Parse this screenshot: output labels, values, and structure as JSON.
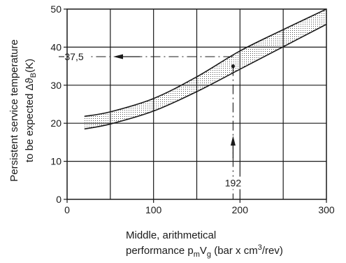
{
  "chart_data": {
    "type": "area",
    "xlabel_line1": "Middle, arithmetical",
    "xlabel_line2": {
      "text1": "performance p",
      "sub1": "m",
      "text2": "V",
      "sub2": "g",
      "text3": " (bar x cm",
      "sup": "3",
      "text4": "/rev)"
    },
    "ylabel_line1": "Persistent service temperature",
    "ylabel_line2": {
      "text1": "to be expected Δϑ",
      "sub": "B",
      "text2": "(K)"
    },
    "xlim": [
      0,
      300
    ],
    "ylim": [
      0,
      50
    ],
    "x_ticks": [
      0,
      100,
      200,
      300
    ],
    "y_ticks": [
      0,
      10,
      20,
      30,
      40,
      50
    ],
    "grid": true,
    "band": {
      "x": [
        20,
        50,
        100,
        150,
        200,
        250,
        300
      ],
      "upper": [
        21.8,
        23.0,
        26.5,
        32.2,
        39.0,
        44.6,
        50.0
      ],
      "lower": [
        18.5,
        19.8,
        23.2,
        28.3,
        34.2,
        40.1,
        46.0
      ]
    },
    "annotations": {
      "read_y_label": "37,5",
      "read_y_value": 37.5,
      "read_x_label": "192",
      "read_x_value": 192,
      "point": {
        "x": 192,
        "y": 35
      }
    }
  }
}
